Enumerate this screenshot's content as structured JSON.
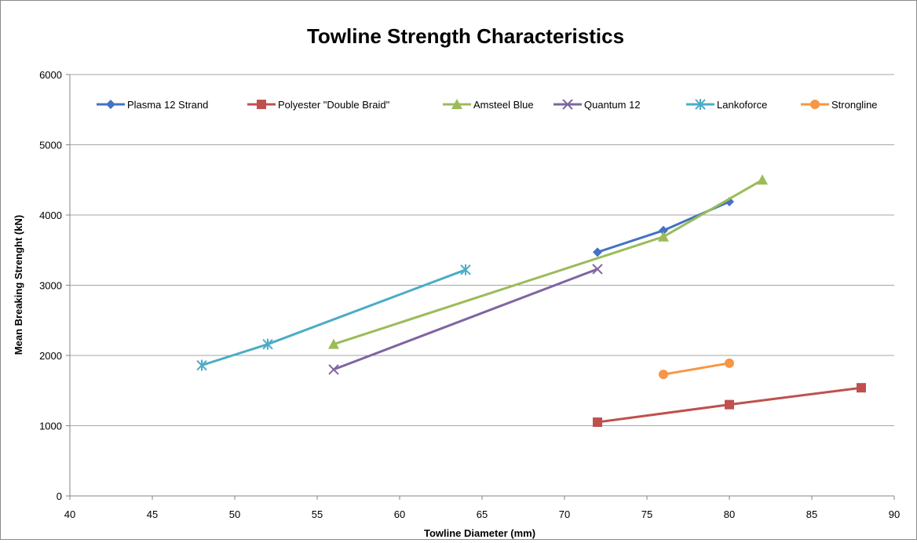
{
  "chart_data": {
    "type": "line",
    "title": "Towline Strength Characteristics",
    "xlabel": "Towline Diameter (mm)",
    "ylabel": "Mean Breaking Strenght (kN)",
    "xlim": [
      40,
      90
    ],
    "ylim": [
      0,
      6000
    ],
    "xticks": [
      40,
      45,
      50,
      55,
      60,
      65,
      70,
      75,
      80,
      85,
      90
    ],
    "yticks": [
      0,
      1000,
      2000,
      3000,
      4000,
      5000,
      6000
    ],
    "grid": "horizontal",
    "legend_position": "top",
    "series": [
      {
        "name": "Plasma 12 Strand",
        "color": "#4472C4",
        "marker": "diamond",
        "points": [
          [
            72,
            3470
          ],
          [
            76,
            3780
          ],
          [
            80,
            4190
          ]
        ]
      },
      {
        "name": "Polyester \"Double Braid\"",
        "color": "#C0504D",
        "marker": "square",
        "points": [
          [
            72,
            1050
          ],
          [
            80,
            1300
          ],
          [
            88,
            1540
          ]
        ]
      },
      {
        "name": "Amsteel Blue",
        "color": "#9BBB59",
        "marker": "triangle",
        "points": [
          [
            56,
            2160
          ],
          [
            76,
            3690
          ],
          [
            82,
            4500
          ]
        ]
      },
      {
        "name": "Quantum 12",
        "color": "#8064A2",
        "marker": "x",
        "points": [
          [
            56,
            1800
          ],
          [
            72,
            3230
          ]
        ]
      },
      {
        "name": "Lankoforce",
        "color": "#4BACC6",
        "marker": "star",
        "points": [
          [
            48,
            1860
          ],
          [
            52,
            2160
          ],
          [
            64,
            3220
          ]
        ]
      },
      {
        "name": "Strongline",
        "color": "#F79646",
        "marker": "circle",
        "points": [
          [
            76,
            1730
          ],
          [
            80,
            1890
          ]
        ]
      }
    ]
  }
}
